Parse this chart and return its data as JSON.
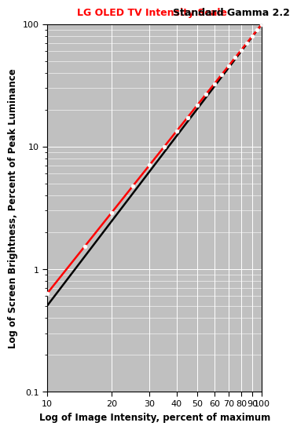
{
  "title_red": "LG OLED TV Intensity Scale",
  "title_black": "Standard Gamma 2.2",
  "xlabel": "Log of Image Intensity, percent of maximum",
  "ylabel": "Log of Screen Brightness, Percent of Peak Luminance",
  "xlim": [
    10,
    100
  ],
  "ylim": [
    0.1,
    100
  ],
  "background_color": "#C0C0C0",
  "figure_background": "#FFFFFF",
  "gamma_ref": 2.2,
  "gamma_meas": 2.3,
  "marker_x": [
    10,
    15,
    20,
    25,
    30,
    35,
    40,
    45,
    50,
    55,
    60,
    65,
    70,
    75,
    80,
    85,
    90,
    95,
    100
  ],
  "yticks": [
    0.1,
    1,
    10,
    100
  ],
  "ytick_labels": [
    "0.1",
    "1",
    "10",
    "100"
  ],
  "xticks": [
    10,
    20,
    30,
    40,
    50,
    60,
    70,
    80,
    90,
    100
  ],
  "xtick_labels": [
    "10",
    "20",
    "30",
    "40",
    "50",
    "60",
    "70",
    "80",
    "90",
    "100"
  ]
}
